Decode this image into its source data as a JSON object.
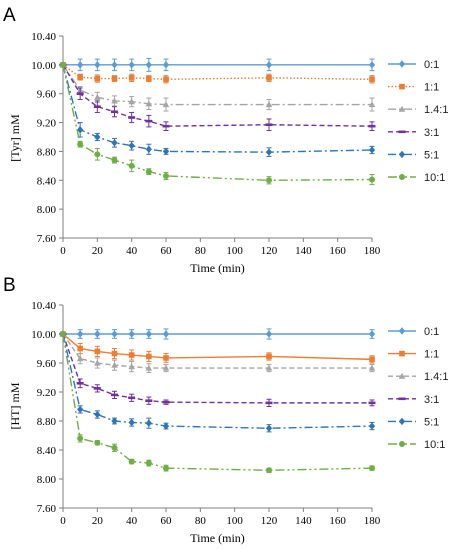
{
  "chart_data": [
    {
      "type": "line",
      "panel_label": "A",
      "xlabel": "Time (min)",
      "ylabel": "[Tyr] mM",
      "xlim": [
        0,
        180
      ],
      "ylim": [
        7.6,
        10.4
      ],
      "x_ticks": [
        "0",
        "20",
        "40",
        "60",
        "80",
        "100",
        "120",
        "140",
        "160",
        "180"
      ],
      "y_ticks": [
        "10.40",
        "10.00",
        "9.60",
        "9.20",
        "8.80",
        "8.40",
        "8.00",
        "7.60"
      ],
      "grid": false,
      "legend_position": "right",
      "x": [
        0,
        10,
        20,
        30,
        40,
        50,
        60,
        120,
        180
      ],
      "series": [
        {
          "name": "0:1",
          "color": "#5b9bd5",
          "dash": "solid",
          "marker": "diamond",
          "values": [
            10.0,
            10.0,
            10.0,
            10.0,
            10.0,
            10.0,
            10.0,
            10.0,
            10.0
          ],
          "errors": [
            0,
            0.08,
            0.08,
            0.08,
            0.08,
            0.09,
            0.08,
            0.08,
            0.08
          ]
        },
        {
          "name": "1:1",
          "color": "#ed7d31",
          "dash": "dot",
          "marker": "square",
          "values": [
            10.0,
            9.83,
            9.81,
            9.81,
            9.82,
            9.81,
            9.8,
            9.82,
            9.8
          ],
          "errors": [
            0,
            0.04,
            0.05,
            0.04,
            0.05,
            0.04,
            0.05,
            0.05,
            0.05
          ]
        },
        {
          "name": "1.4:1",
          "color": "#a5a5a5",
          "dash": "dashdot",
          "marker": "triangle",
          "values": [
            10.0,
            9.65,
            9.55,
            9.5,
            9.49,
            9.46,
            9.45,
            9.45,
            9.45
          ],
          "errors": [
            0,
            0.05,
            0.07,
            0.07,
            0.07,
            0.08,
            0.09,
            0.07,
            0.09
          ]
        },
        {
          "name": "3:1",
          "color": "#7030a0",
          "dash": "dash",
          "marker": "dash",
          "values": [
            10.0,
            9.6,
            9.42,
            9.35,
            9.27,
            9.22,
            9.15,
            9.17,
            9.15
          ],
          "errors": [
            0,
            0.08,
            0.08,
            0.07,
            0.07,
            0.08,
            0.06,
            0.08,
            0.06
          ]
        },
        {
          "name": "5:1",
          "color": "#2e75b6",
          "dash": "dashdot",
          "marker": "diamond",
          "values": [
            10.0,
            9.1,
            9.0,
            8.92,
            8.88,
            8.83,
            8.8,
            8.79,
            8.82
          ],
          "errors": [
            0,
            0.1,
            0.05,
            0.06,
            0.06,
            0.07,
            0.04,
            0.06,
            0.05
          ]
        },
        {
          "name": "10:1",
          "color": "#70ad47",
          "dash": "dashdotdot",
          "marker": "circle",
          "values": [
            10.0,
            8.9,
            8.76,
            8.68,
            8.6,
            8.52,
            8.46,
            8.4,
            8.41
          ],
          "errors": [
            0,
            0.04,
            0.08,
            0.04,
            0.08,
            0.04,
            0.05,
            0.05,
            0.07
          ]
        }
      ]
    },
    {
      "type": "line",
      "panel_label": "B",
      "xlabel": "Time (min)",
      "ylabel": "[HT] mM",
      "xlim": [
        0,
        180
      ],
      "ylim": [
        7.6,
        10.4
      ],
      "x_ticks": [
        "0",
        "20",
        "40",
        "60",
        "80",
        "100",
        "120",
        "140",
        "160",
        "180"
      ],
      "y_ticks": [
        "10.40",
        "10.00",
        "9.60",
        "9.20",
        "8.80",
        "8.40",
        "8.00",
        "7.60"
      ],
      "grid": false,
      "legend_position": "right",
      "x": [
        0,
        10,
        20,
        30,
        40,
        50,
        60,
        120,
        180
      ],
      "series": [
        {
          "name": "0:1",
          "color": "#5b9bd5",
          "dash": "solid",
          "marker": "diamond",
          "values": [
            10.0,
            10.0,
            10.0,
            10.0,
            10.0,
            10.0,
            10.0,
            10.0,
            10.0
          ],
          "errors": [
            0,
            0.06,
            0.06,
            0.06,
            0.06,
            0.06,
            0.07,
            0.07,
            0.06
          ]
        },
        {
          "name": "1:1",
          "color": "#ed7d31",
          "dash": "solid",
          "marker": "square",
          "values": [
            10.0,
            9.8,
            9.76,
            9.73,
            9.71,
            9.69,
            9.67,
            9.69,
            9.65
          ],
          "errors": [
            0,
            0.07,
            0.07,
            0.07,
            0.07,
            0.07,
            0.06,
            0.05,
            0.05
          ]
        },
        {
          "name": "1.4:1",
          "color": "#a5a5a5",
          "dash": "dash",
          "marker": "triangle",
          "values": [
            10.0,
            9.66,
            9.6,
            9.57,
            9.55,
            9.53,
            9.53,
            9.53,
            9.53
          ],
          "errors": [
            0,
            0.07,
            0.07,
            0.07,
            0.07,
            0.06,
            0.05,
            0.05,
            0.05
          ]
        },
        {
          "name": "3:1",
          "color": "#7030a0",
          "dash": "dash",
          "marker": "dash",
          "values": [
            10.0,
            9.32,
            9.25,
            9.16,
            9.12,
            9.08,
            9.06,
            9.05,
            9.05
          ],
          "errors": [
            0,
            0.06,
            0.05,
            0.05,
            0.05,
            0.05,
            0.03,
            0.05,
            0.04
          ]
        },
        {
          "name": "5:1",
          "color": "#2e75b6",
          "dash": "dashdot",
          "marker": "diamond",
          "values": [
            10.0,
            8.96,
            8.89,
            8.8,
            8.78,
            8.77,
            8.73,
            8.7,
            8.73
          ],
          "errors": [
            0,
            0.05,
            0.05,
            0.04,
            0.05,
            0.07,
            0.04,
            0.05,
            0.05
          ]
        },
        {
          "name": "10:1",
          "color": "#70ad47",
          "dash": "dashdotdot",
          "marker": "circle",
          "values": [
            10.0,
            8.56,
            8.5,
            8.43,
            8.24,
            8.22,
            8.15,
            8.12,
            8.15
          ],
          "errors": [
            0,
            0.05,
            0.03,
            0.05,
            0.03,
            0.04,
            0.04,
            0.03,
            0.03
          ]
        }
      ]
    }
  ]
}
